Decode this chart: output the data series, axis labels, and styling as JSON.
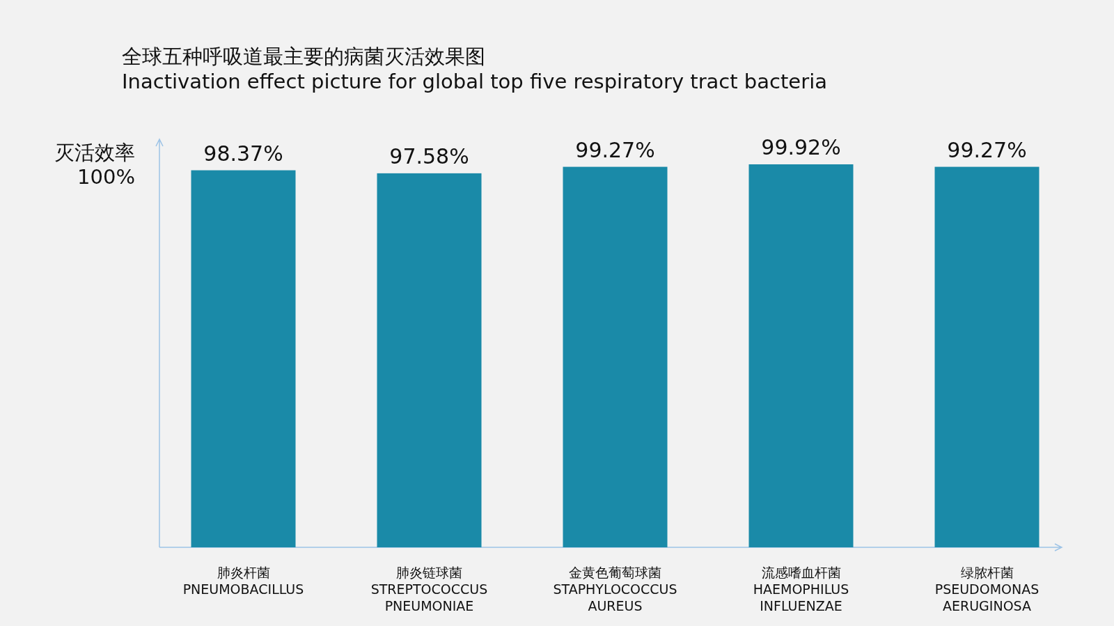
{
  "chart_data": {
    "type": "bar",
    "title": "全球五种呼吸道最主要的病菌灭活效果图",
    "subtitle": "Inactivation effect picture for global top five respiratory tract bacteria",
    "ylabel": "灭活效率 100%",
    "categories": [
      "肺炎杆菌 PNEUMOBACILLUS",
      "肺炎链球菌 STREPTOCOCCUS PNEUMONIAE",
      "金黄色葡萄球菌 STAPHYLOCOCCUS AUREUS",
      "流感嗜血杆菌 HAEMOPHILUS INFLUENZAE",
      "绿脓杆菌 PSEUDOMONAS AERUGINOSA"
    ],
    "values": [
      98.37,
      97.58,
      99.27,
      99.92,
      99.27
    ],
    "value_labels": [
      "98.37%",
      "97.58%",
      "99.27%",
      "99.92%",
      "99.27%"
    ],
    "color": "#1a8aa8"
  }
}
